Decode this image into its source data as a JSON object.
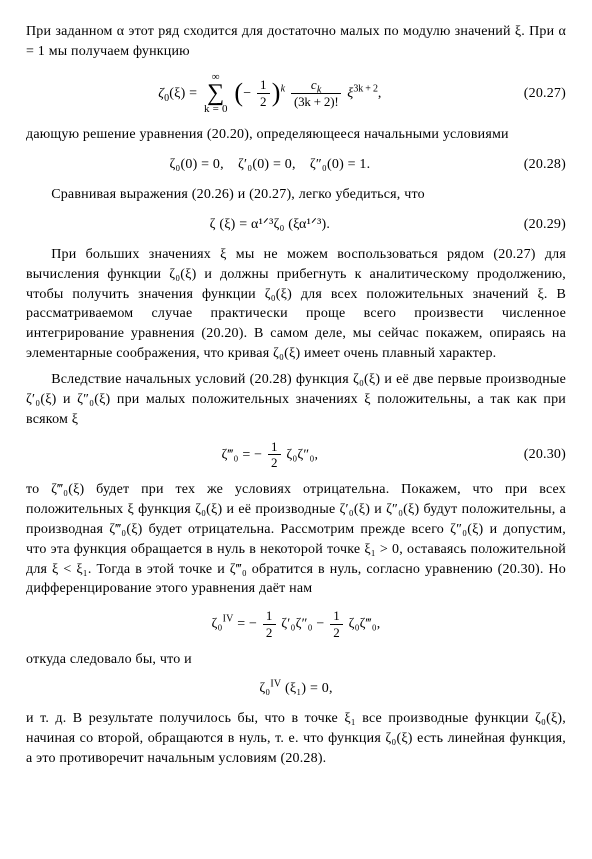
{
  "para1": "При заданном α этот ряд сходится для достаточно малых по модулю значений ξ. При α = 1 мы получаем функцию",
  "eq27": {
    "lhs": "ζ",
    "lhs_sub": "0",
    "lhs_arg": "(ξ) =",
    "sum_top": "∞",
    "sum_bot": "k = 0",
    "paren_l": "(",
    "minus_half_n": "1",
    "minus_half_d": "2",
    "paren_r": ")",
    "exp_k": "k",
    "frac_ck_n": "c",
    "frac_ck_n_sub": "k",
    "frac_ck_d": "(3k + 2)!",
    "xi_pow": "ξ",
    "xi_exp": "3k + 2",
    "num": "(20.27)"
  },
  "para2": "дающую решение уравнения (20.20), определяющееся начальными условиями",
  "eq28": {
    "body": "ζ₀(0) = 0, ζ′₀(0) = 0, ζ″₀(0) = 1.",
    "num": "(20.28)"
  },
  "para3": "Сравнивая выражения (20.26) и (20.27), легко убедиться, что",
  "eq29": {
    "body": "ζ (ξ) = α¹ᐟ³ζ₀ (ξα¹ᐟ³).",
    "num": "(20.29)"
  },
  "para4": "При больших значениях ξ мы не можем воспользоваться рядом (20.27) для вычисления функции ζ₀(ξ) и должны прибегнуть к аналитическому продолжению, чтобы получить значения функции ζ₀(ξ) для всех положительных значений ξ. В рассматриваемом случае практически проще всего произвести численное интегрирование уравнения (20.20). В самом деле, мы сейчас покажем, опираясь на элементарные соображения, что кривая ζ₀(ξ) имеет очень плавный характер.",
  "para5": "Вследствие начальных условий (20.28) функция ζ₀(ξ) и её две первые производные ζ′₀(ξ) и ζ″₀(ξ) при малых положительных значениях ξ положительны, а так как при всяком ξ",
  "eq30": {
    "lhs": "ζ‴₀ = −",
    "half_n": "1",
    "half_d": "2",
    "rhs": " ζ₀ζ″₀,",
    "num": "(20.30)"
  },
  "para6": "то ζ‴₀(ξ) будет при тех же условиях отрицательна. Покажем, что при всех положительных ξ функция ζ₀(ξ) и её производные ζ′₀(ξ) и ζ″₀(ξ) будут положительны, а производная ζ‴₀(ξ) будет отрицательна. Рассмотрим прежде всего ζ″₀(ξ) и допустим, что эта функция обращается в нуль в некоторой точке ξ₁ > 0, оставаясь положительной для ξ < ξ₁. Тогда в этой точке и ζ‴₀ обратится в нуль, согласно уравнению (20.30). Но дифференцирование этого уравнения даёт нам",
  "eq_iv": {
    "lhs": "ζ₀",
    "lhs_sup": "IV",
    "eq": " = −",
    "half1_n": "1",
    "half1_d": "2",
    "mid1": " ζ′₀ζ″₀ − ",
    "half2_n": "1",
    "half2_d": "2",
    "mid2": " ζ₀ζ‴₀,"
  },
  "para7": "откуда следовало бы, что и",
  "eq_iv2": {
    "body": "ζ₀",
    "sup": "IV",
    "arg": " (ξ₁) = 0,"
  },
  "para8": "и т. д. В результате получилось бы, что в точке ξ₁ все производные функции ζ₀(ξ), начиная со второй, обращаются в нуль, т. е. что функция ζ₀(ξ) есть линейная функция, а это противоречит начальным условиям (20.28)."
}
